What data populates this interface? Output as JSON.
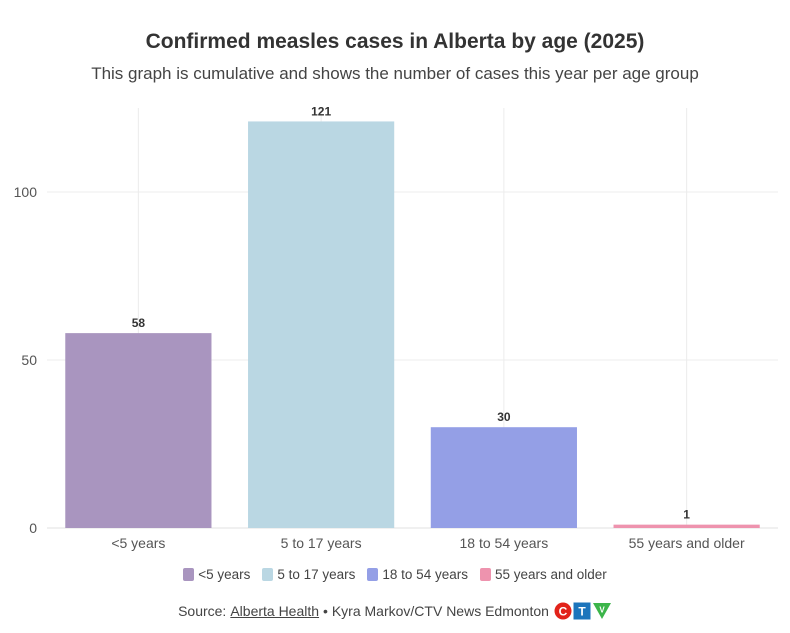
{
  "header": {
    "title": "Confirmed measles cases in Alberta by age (2025)",
    "subtitle": "This graph is cumulative and shows the number of cases this year per age group"
  },
  "chart_data": {
    "type": "bar",
    "categories": [
      "<5 years",
      "5 to 17 years",
      "18 to 54 years",
      "55 years and older"
    ],
    "values": [
      58,
      121,
      30,
      1
    ],
    "data_labels": [
      "58",
      "121",
      "30",
      "1"
    ],
    "colors": [
      "#a995bf",
      "#bad7e3",
      "#949fe6",
      "#ee93ae"
    ],
    "yticks": [
      0,
      50,
      100
    ],
    "ylim": [
      0,
      125
    ],
    "grid": true,
    "legend": {
      "position": "bottom",
      "entries": [
        "<5 years",
        "5 to 17 years",
        "18 to 54 years",
        "55 years and older"
      ]
    }
  },
  "footer": {
    "source_prefix": "Source:",
    "source_link": "Alberta Health",
    "source_suffix": "• Kyra Markov/CTV News Edmonton",
    "logo_letters": [
      "C",
      "T",
      "V"
    ],
    "logo_colors": [
      "#e2231a",
      "#1c75bc",
      "#3cb54a"
    ]
  }
}
